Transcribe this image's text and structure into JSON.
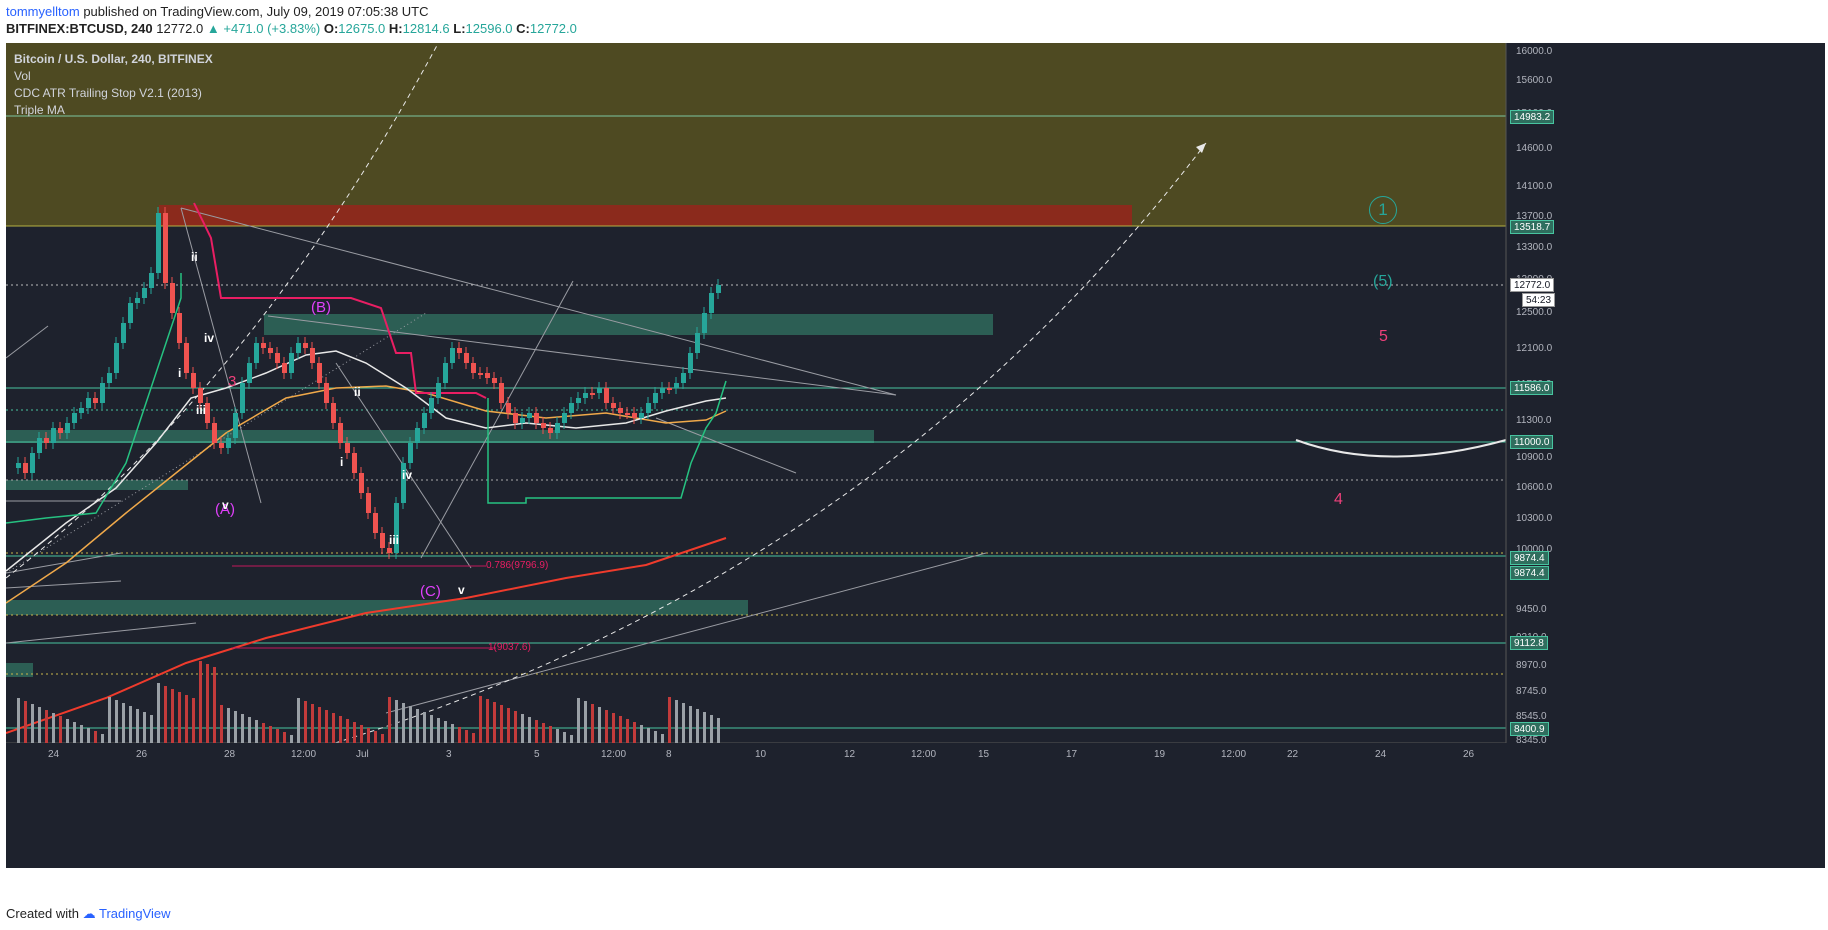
{
  "header": {
    "author": "tommyelltom",
    "published_text": "published on TradingView.com, July 09, 2019 07:05:38 UTC",
    "symbol": "BITFINEX:BTCUSD, 240",
    "last": "12772.0",
    "change": "▲ +471.0 (+3.83%)",
    "o_label": "O:",
    "o_value": "12675.0",
    "h_label": "H:",
    "h_value": "12814.6",
    "l_label": "L:",
    "l_value": "12596.0",
    "c_label": "C:",
    "c_value": "12772.0"
  },
  "legend": {
    "title": "Bitcoin / U.S. Dollar, 240, BITFINEX",
    "indicators": [
      "Vol",
      "CDC ATR Trailing Stop V2.1 (2013)",
      "Triple MA"
    ]
  },
  "price_axis": {
    "ticks": [
      "16000.0",
      "15600.0",
      "15100.0",
      "14600.0",
      "14100.0",
      "13700.0",
      "13300.0",
      "12900.0",
      "12500.0",
      "12100.0",
      "11700.0",
      "11300.0",
      "10900.0",
      "10600.0",
      "10300.0",
      "10000.0",
      "9450.0",
      "9210.0",
      "8970.0",
      "8745.0",
      "8545.0",
      "8345.0"
    ],
    "badges": [
      {
        "text": "14983.2",
        "kind": "green"
      },
      {
        "text": "13518.7",
        "kind": "green"
      },
      {
        "text": "12772.0",
        "kind": "white"
      },
      {
        "text": "54:23",
        "kind": "white"
      },
      {
        "text": "11586.0",
        "kind": "green"
      },
      {
        "text": "11000.0",
        "kind": "green"
      },
      {
        "text": "9874.4",
        "kind": "green"
      },
      {
        "text": "9874.4",
        "kind": "green"
      },
      {
        "text": "9112.8",
        "kind": "green"
      },
      {
        "text": "8400.9",
        "kind": "green"
      }
    ]
  },
  "time_axis": {
    "ticks": [
      "24",
      "26",
      "28",
      "12:00",
      "Jul",
      "3",
      "5",
      "12:00",
      "8",
      "10",
      "12",
      "12:00",
      "15",
      "17",
      "19",
      "12:00",
      "22",
      "24",
      "26"
    ]
  },
  "wave_labels": {
    "B": "(B)",
    "A": "(A)",
    "C": "(C)",
    "w3": "3",
    "ii_1": "ii",
    "iv_1": "iv",
    "i_1": "i",
    "iii_1": "iii",
    "v_1": "v",
    "ii_2": "ii",
    "i_2": "i",
    "iv_2": "iv",
    "iii_2": "iii",
    "v_2": "v",
    "circle1": "1",
    "five_paren": "(5)",
    "five": "5",
    "four": "4"
  },
  "fib_labels": {
    "fib786": "0.786(9796.9)",
    "fib1": "1(9037.6)"
  },
  "colors": {
    "background": "#1e222d",
    "up": "#26a69a",
    "down": "#ef5350",
    "zone_olive": "#4e4a22",
    "zone_red": "#8b2a1c",
    "zone_green": "#2f6e5e",
    "magenta": "#e040fb",
    "pink": "#ec407a"
  },
  "footer": {
    "created_with": "Created with",
    "brand": "TradingView"
  }
}
